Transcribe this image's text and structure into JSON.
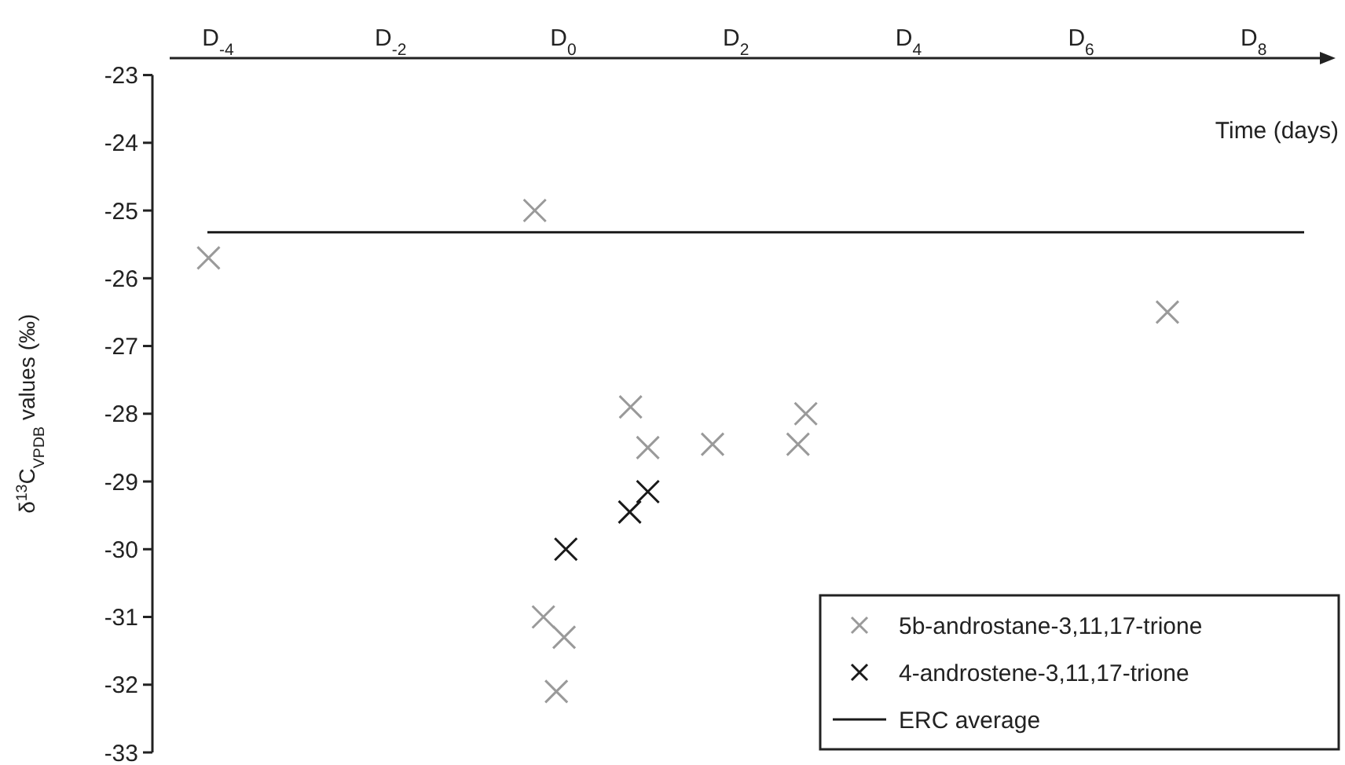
{
  "chart_data": {
    "type": "scatter",
    "xlabel": "Time (days)",
    "ylabel": "δ$^{13}$C$_{VPDB}$ values (‰)",
    "xlim": [
      -4.56,
      8.73
    ],
    "xticks": [
      {
        "value": -4,
        "label": "D$_{-4}$"
      },
      {
        "value": -2,
        "label": "D$_{-2}$"
      },
      {
        "value": 0,
        "label": "D$_{0}$"
      },
      {
        "value": 2,
        "label": "D$_{2}$"
      },
      {
        "value": 4,
        "label": "D$_{4}$"
      },
      {
        "value": 6,
        "label": "D$_{6}$"
      },
      {
        "value": 8,
        "label": "D$_{8}$"
      }
    ],
    "ylim": [
      -33,
      -22.75
    ],
    "yticks": [
      -23,
      -24,
      -25,
      -26,
      -27,
      -28,
      -29,
      -30,
      -31,
      -32,
      -33
    ],
    "marker": "cross",
    "legend": "bottom right",
    "grid": false,
    "series": [
      {
        "name": "5b-androstane-3,11,17-trione",
        "color": "#9a9a9a",
        "x": [
          -4.11,
          -0.33,
          7.0,
          0.78,
          0.98,
          -0.23,
          0.01,
          -0.08,
          1.73,
          2.72,
          2.81
        ],
        "values": [
          -25.7,
          -25.0,
          -26.5,
          -27.9,
          -28.5,
          -31.0,
          -31.3,
          -32.1,
          -28.45,
          -28.45,
          -28.0
        ]
      },
      {
        "name": "4-androstene-3,11,17-trione",
        "color": "#1a1a1a",
        "x": [
          0.03,
          0.77,
          0.98
        ],
        "values": [
          -30.0,
          -29.45,
          -29.15
        ]
      }
    ],
    "ref_lines": [
      {
        "axis": "y",
        "value": -25.32,
        "label": "ERC average",
        "color": "#1a1a1a",
        "line_style": "solid"
      }
    ]
  }
}
